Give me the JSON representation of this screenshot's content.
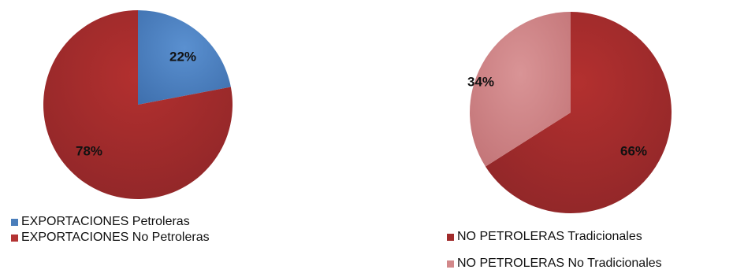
{
  "chart_data": [
    {
      "type": "pie",
      "slices": [
        {
          "label": "EXPORTACIONES Petroleras",
          "value": 22,
          "value_label": "22%",
          "color": "#4A7EBB"
        },
        {
          "label": "EXPORTACIONES No Petroleras",
          "value": 78,
          "value_label": "78%",
          "color": "#9E2A2B"
        }
      ],
      "start_angle": "12 o'clock",
      "direction": "clockwise",
      "legend_position": "bottom-left"
    },
    {
      "type": "pie",
      "slices": [
        {
          "label": "NO PETROLERAS Tradicionales",
          "value": 66,
          "value_label": "66%",
          "color": "#A02B2B"
        },
        {
          "label": "NO PETROLERAS No Tradicionales",
          "value": 34,
          "value_label": "34%",
          "color": "#D2888A"
        }
      ],
      "start_angle": "12 o'clock",
      "direction": "clockwise",
      "legend_position": "bottom-right"
    }
  ]
}
